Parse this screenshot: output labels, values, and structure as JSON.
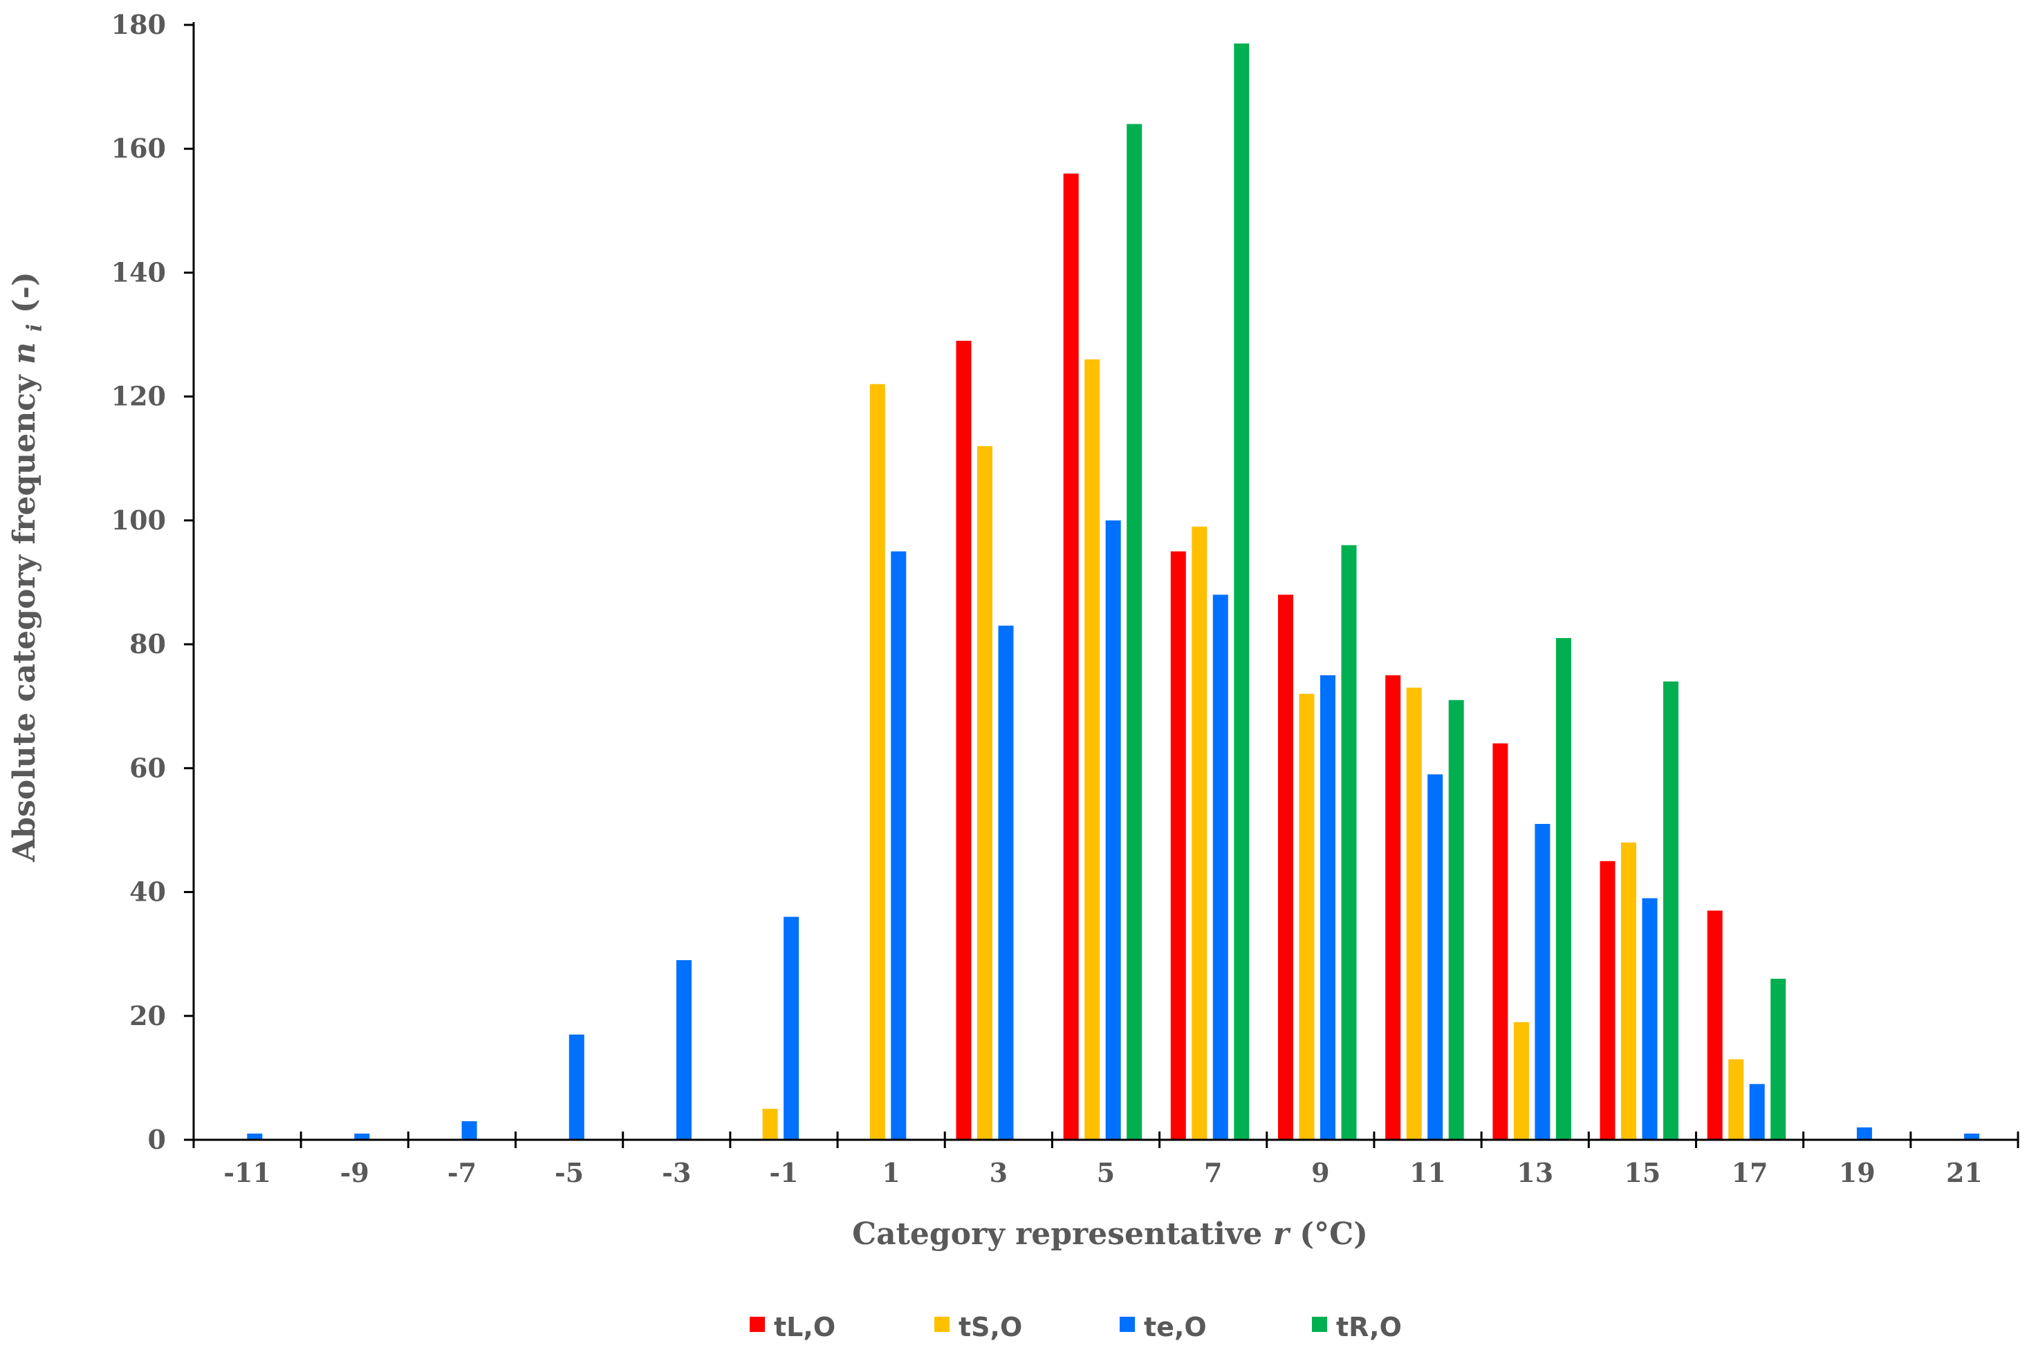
{
  "chart_data": {
    "type": "bar",
    "title": "",
    "xlabel": "Category representative",
    "xlabel_var": "r",
    "xlabel_unit": "(°C)",
    "ylabel": "Absolute category frequency",
    "ylabel_var": "n",
    "ylabel_sub": "i",
    "ylabel_unit": "(-)",
    "ylim": [
      0,
      180
    ],
    "yticks": [
      0,
      20,
      40,
      60,
      80,
      100,
      120,
      140,
      160,
      180
    ],
    "categories": [
      "-11",
      "-9",
      "-7",
      "-5",
      "-3",
      "-1",
      "1",
      "3",
      "5",
      "7",
      "9",
      "11",
      "13",
      "15",
      "17",
      "19",
      "21"
    ],
    "legend_position": "bottom",
    "series": [
      {
        "name": "tL,O",
        "color": "#ff0000",
        "values": [
          0,
          0,
          0,
          0,
          0,
          0,
          0,
          129,
          156,
          95,
          88,
          75,
          64,
          45,
          37,
          0,
          0
        ]
      },
      {
        "name": "tS,O",
        "color": "#ffc000",
        "values": [
          0,
          0,
          0,
          0,
          0,
          5,
          122,
          112,
          126,
          99,
          72,
          73,
          19,
          48,
          13,
          0,
          0
        ]
      },
      {
        "name": "te,O",
        "color": "#0070ff",
        "values": [
          1,
          1,
          3,
          17,
          29,
          36,
          95,
          83,
          100,
          88,
          75,
          59,
          51,
          39,
          9,
          2,
          1
        ]
      },
      {
        "name": "tR,O",
        "color": "#00b050",
        "values": [
          0,
          0,
          0,
          0,
          0,
          0,
          0,
          0,
          164,
          177,
          96,
          71,
          81,
          74,
          26,
          0,
          0
        ]
      }
    ]
  }
}
